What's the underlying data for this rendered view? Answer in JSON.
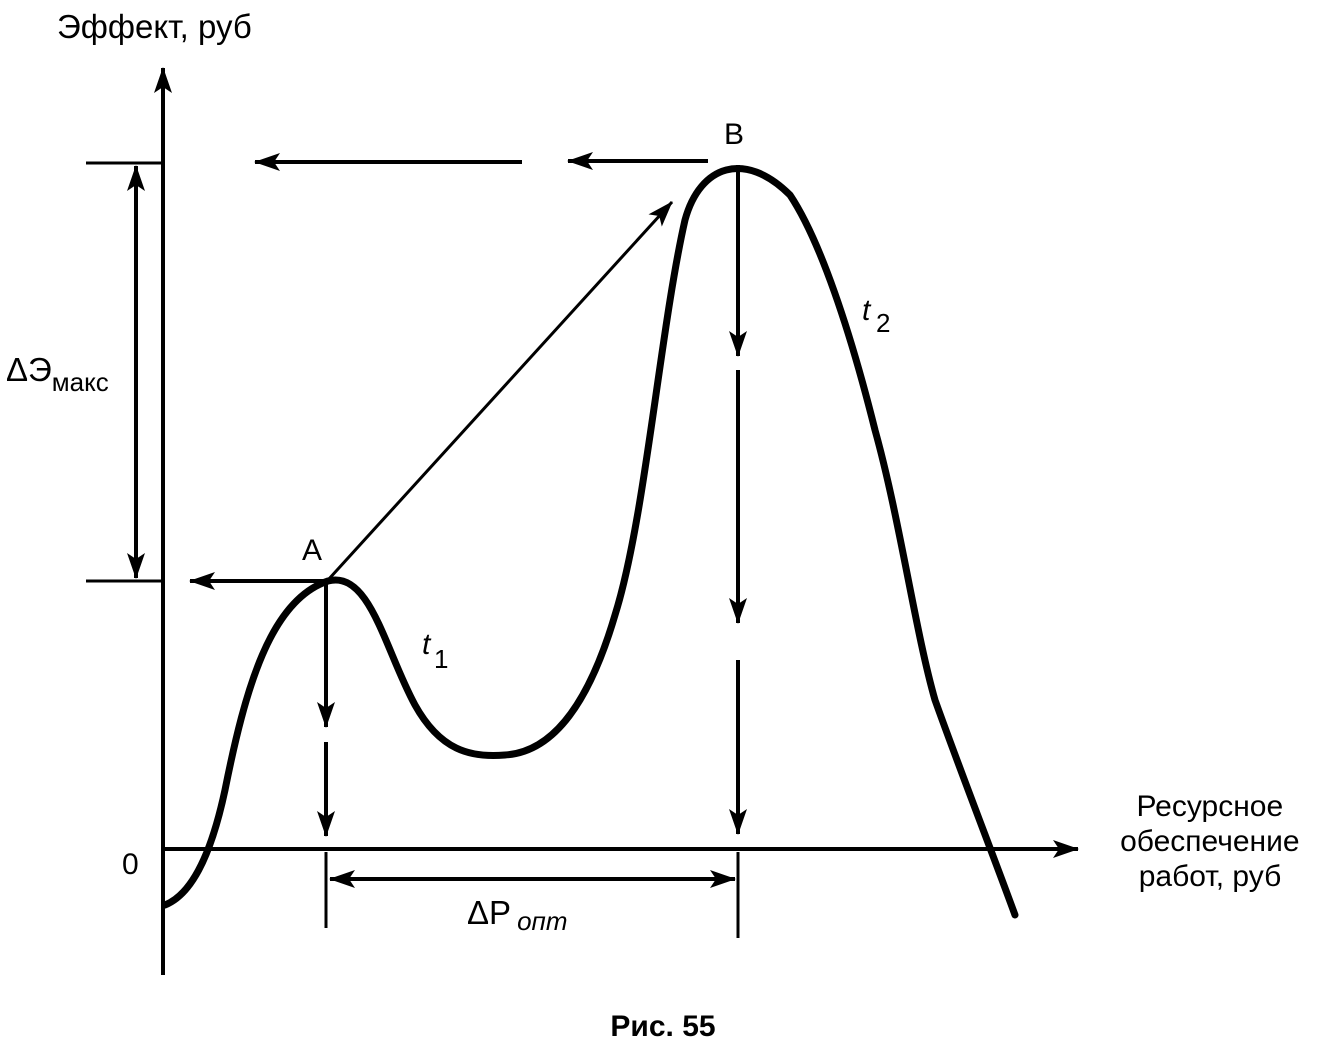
{
  "y_axis_label": "Эффект, руб",
  "x_axis_label_lines": [
    "Ресурсное",
    "обеспечение",
    "работ, руб"
  ],
  "origin_label": "0",
  "point_a_label": "A",
  "point_b_label": "B",
  "curve_t1_label": {
    "letter": "t",
    "subscript": "1"
  },
  "curve_t2_label": {
    "letter": "t",
    "subscript": "2"
  },
  "delta_effect_label": {
    "symbol": "ΔЭ",
    "subscript": "макс"
  },
  "delta_resource_label": {
    "symbol": "ΔP",
    "subscript": "опт"
  },
  "caption": "Рис. 55"
}
